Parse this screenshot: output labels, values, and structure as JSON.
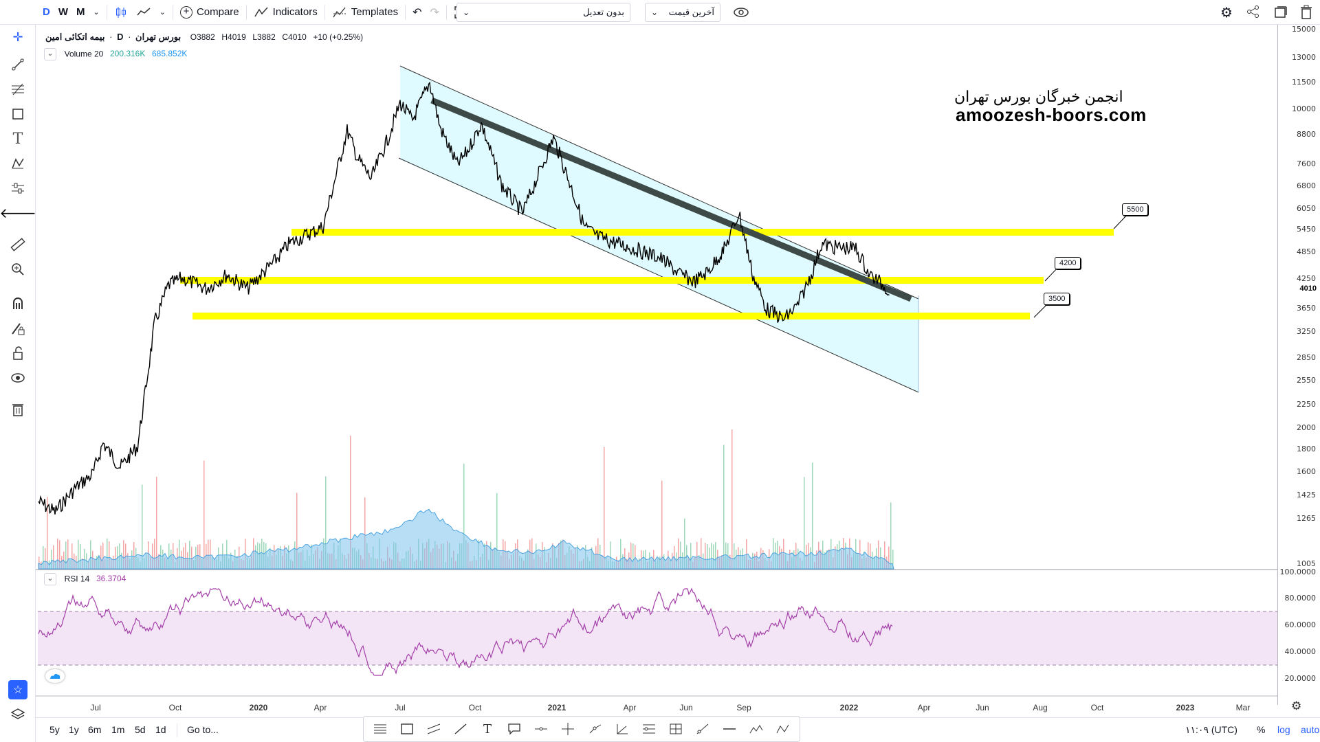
{
  "toolbar": {
    "intervals": [
      "D",
      "W",
      "M"
    ],
    "compare_label": "Compare",
    "indicators_label": "Indicators",
    "templates_label": "Templates",
    "adjustment_value": "بدون تعدیل",
    "price_type_value": "آخرین قیمت"
  },
  "symbol": {
    "name": "بیمه اتکائی امین",
    "exchange": "بورس تهران",
    "interval": "D",
    "open": "O3882",
    "high": "H4019",
    "low": "L3882",
    "close": "C4010",
    "change": "+10 (+0.25%)"
  },
  "volume_legend": {
    "label": "Volume 20",
    "v1": "200.316K",
    "v2": "685.852K"
  },
  "rsi_legend": {
    "label": "RSI 14",
    "value": "36.3704"
  },
  "watermark": {
    "line1": "انجمن خبرگان بورس تهران",
    "line2": "amoozesh-boors.com"
  },
  "annotations": [
    "5500",
    "4200",
    "3500"
  ],
  "price_axis": [
    "15000",
    "13000",
    "11500",
    "10000",
    "8800",
    "7600",
    "6800",
    "6050",
    "5450",
    "4850",
    "4250",
    "3650",
    "3250",
    "2850",
    "2550",
    "2250",
    "2000",
    "1800",
    "1600",
    "1425",
    "1265",
    "1005"
  ],
  "last_price": "4010",
  "rsi_axis": [
    "100.0000",
    "80.0000",
    "60.0000",
    "40.0000",
    "20.0000"
  ],
  "time_axis": [
    "Jul",
    "Oct",
    "2020",
    "Apr",
    "Jul",
    "Oct",
    "2021",
    "Apr",
    "Jun",
    "Sep",
    "2022",
    "Apr",
    "Jun",
    "Aug",
    "Oct",
    "2023",
    "Mar"
  ],
  "bottom": {
    "ranges": [
      "5y",
      "1y",
      "6m",
      "1m",
      "5d",
      "1d"
    ],
    "goto_label": "Go to...",
    "time_label": "۱۱:۰۹ (UTC)",
    "percent_label": "%",
    "log_label": "log",
    "auto_label": "auto"
  },
  "colors": {
    "level": "#ffff00",
    "channel": "#e0fbff",
    "rsi": "#a33ea8",
    "volume": "#7ec3ee",
    "log_active": "#2962ff"
  },
  "icons": [
    "crosshair-icon",
    "trendline-icon",
    "fib-icon",
    "rectangle-icon",
    "text-icon",
    "pattern-icon",
    "prediction-icon",
    "back-arrow-icon",
    "ruler-icon",
    "zoom-icon",
    "magnet-icon",
    "lock-draw-icon",
    "lock-icon",
    "eye-icon",
    "trash-icon",
    "star-icon",
    "layers-icon"
  ]
}
